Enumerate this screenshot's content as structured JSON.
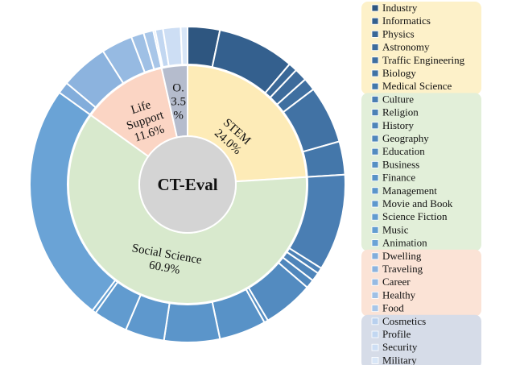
{
  "chart_data": {
    "type": "sunburst",
    "center_label": "CT-Eval",
    "inner": [
      {
        "name": "STEM",
        "pct_text": "24.0%",
        "value": 24.0,
        "color": "#fdebb7",
        "band_color": "#fdf1c9"
      },
      {
        "name": "Social Science",
        "pct_text": "60.9%",
        "value": 60.9,
        "color": "#d8e9cd",
        "band_color": "#e2efd9"
      },
      {
        "name": "Life Support",
        "pct_text": "11.6%",
        "value": 11.6,
        "color": "#fbd5c4",
        "band_color": "#fbe3d6"
      },
      {
        "name": "O.",
        "pct_text": "3.5%",
        "value": 3.5,
        "color": "#b5bccd",
        "band_color": "#d6dce8"
      }
    ],
    "outer": [
      {
        "name": "Industry",
        "value": 3.3,
        "group": "STEM",
        "color": "#2e5680"
      },
      {
        "name": "Informatics",
        "value": 7.9,
        "group": "STEM",
        "color": "#34608e"
      },
      {
        "name": "Physics",
        "value": 0.9,
        "group": "STEM",
        "color": "#3a6897"
      },
      {
        "name": "Astronomy",
        "value": 1.3,
        "group": "STEM",
        "color": "#3d6b9b"
      },
      {
        "name": "Traffic Engineering",
        "value": 1.3,
        "group": "STEM",
        "color": "#3f6fa0"
      },
      {
        "name": "Biology",
        "value": 5.9,
        "group": "STEM",
        "color": "#4172a4"
      },
      {
        "name": "Medical Science",
        "value": 3.4,
        "group": "STEM",
        "color": "#4477aa"
      },
      {
        "name": "Culture",
        "value": 9.9,
        "group": "Social Science",
        "color": "#4a7eb3"
      },
      {
        "name": "Religion",
        "value": 0.6,
        "group": "Social Science",
        "color": "#4c81b6"
      },
      {
        "name": "History",
        "value": 0.9,
        "group": "Social Science",
        "color": "#4e84b9"
      },
      {
        "name": "Geography",
        "value": 0.9,
        "group": "Social Science",
        "color": "#5087bc"
      },
      {
        "name": "Education",
        "value": 5.2,
        "group": "Social Science",
        "color": "#538bc0"
      },
      {
        "name": "Business",
        "value": 0.4,
        "group": "Social Science",
        "color": "#568fc4"
      },
      {
        "name": "Finance",
        "value": 4.8,
        "group": "Social Science",
        "color": "#5892c7"
      },
      {
        "name": "Management",
        "value": 5.7,
        "group": "Social Science",
        "color": "#5b95ca"
      },
      {
        "name": "Movie and Book",
        "value": 4.0,
        "group": "Social Science",
        "color": "#5e98cd"
      },
      {
        "name": "Science Fiction",
        "value": 3.5,
        "group": "Social Science",
        "color": "#619bcf"
      },
      {
        "name": "Music",
        "value": 0.4,
        "group": "Social Science",
        "color": "#649ed1"
      },
      {
        "name": "Animation",
        "value": 24.6,
        "group": "Social Science",
        "color": "#6aa3d6"
      },
      {
        "name": "Dwelling",
        "value": 1.2,
        "group": "Life Support",
        "color": "#82addb"
      },
      {
        "name": "Traveling",
        "value": 4.9,
        "group": "Life Support",
        "color": "#8cb3de"
      },
      {
        "name": "Career",
        "value": 3.2,
        "group": "Life Support",
        "color": "#96bae2"
      },
      {
        "name": "Healthy",
        "value": 1.3,
        "group": "Life Support",
        "color": "#9fc0e5"
      },
      {
        "name": "Food",
        "value": 1.0,
        "group": "Life Support",
        "color": "#a8c6e8"
      },
      {
        "name": "Cosmetics",
        "value": 0.2,
        "group": "O.",
        "color": "#b8d0ee"
      },
      {
        "name": "Profile",
        "value": 0.8,
        "group": "O.",
        "color": "#c2d7f1"
      },
      {
        "name": "Security",
        "value": 1.8,
        "group": "O.",
        "color": "#cddef4"
      },
      {
        "name": "Military",
        "value": 0.7,
        "group": "O.",
        "color": "#d8e6f7"
      }
    ],
    "legend_position": "right"
  }
}
